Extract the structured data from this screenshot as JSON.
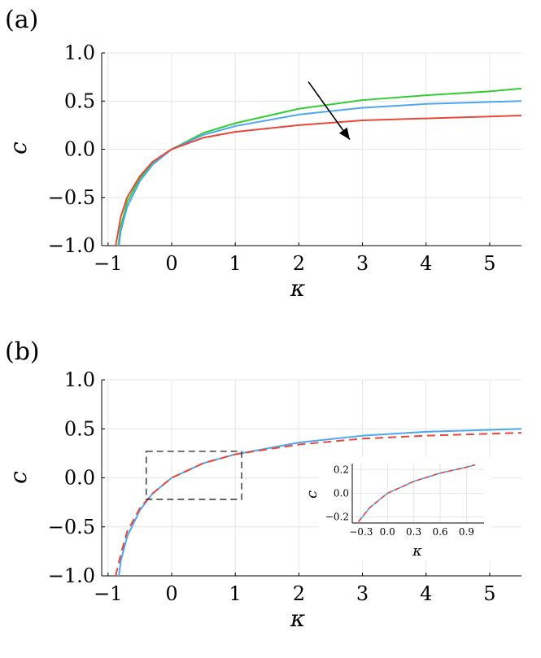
{
  "chart_data": [
    {
      "panel_label": "(a)",
      "type": "line",
      "xlabel": "κ",
      "ylabel": "c",
      "xlim": [
        -1.1,
        5.5
      ],
      "ylim": [
        -1.0,
        1.0
      ],
      "xticks": [
        "−1",
        "0",
        "1",
        "2",
        "3",
        "4",
        "5"
      ],
      "yticks": [
        "−1.0",
        "−0.5",
        "0.0",
        "0.5",
        "1.0"
      ],
      "grid": true,
      "series": [
        {
          "color": "#32CD32",
          "style": "solid",
          "x": [
            -0.84,
            -0.8,
            -0.7,
            -0.5,
            -0.3,
            0,
            0.5,
            1,
            2,
            3,
            4,
            5,
            5.5
          ],
          "y": [
            -1.0,
            -0.8,
            -0.55,
            -0.3,
            -0.15,
            0.0,
            0.17,
            0.27,
            0.42,
            0.51,
            0.56,
            0.6,
            0.63
          ]
        },
        {
          "color": "#4DA6F0",
          "style": "solid",
          "x": [
            -0.83,
            -0.8,
            -0.7,
            -0.5,
            -0.3,
            0,
            0.5,
            1,
            2,
            3,
            4,
            5,
            5.5
          ],
          "y": [
            -1.0,
            -0.85,
            -0.6,
            -0.33,
            -0.16,
            0.0,
            0.15,
            0.24,
            0.36,
            0.43,
            0.47,
            0.49,
            0.5
          ]
        },
        {
          "color": "#E8483A",
          "style": "solid",
          "x": [
            -0.88,
            -0.8,
            -0.7,
            -0.5,
            -0.3,
            0,
            0.5,
            1,
            2,
            3,
            4,
            5,
            5.5
          ],
          "y": [
            -1.0,
            -0.7,
            -0.5,
            -0.28,
            -0.13,
            0.0,
            0.12,
            0.18,
            0.25,
            0.3,
            0.32,
            0.34,
            0.35
          ]
        }
      ],
      "annotations": [
        {
          "type": "arrow",
          "from": [
            2.15,
            0.7
          ],
          "to": [
            2.8,
            0.1
          ]
        }
      ]
    },
    {
      "panel_label": "(b)",
      "type": "line",
      "xlabel": "κ",
      "ylabel": "c",
      "xlim": [
        -1.1,
        5.5
      ],
      "ylim": [
        -1.0,
        1.0
      ],
      "xticks": [
        "−1",
        "0",
        "1",
        "2",
        "3",
        "4",
        "5"
      ],
      "yticks": [
        "−1.0",
        "−0.5",
        "0.0",
        "0.5",
        "1.0"
      ],
      "grid": true,
      "series": [
        {
          "color": "#4DA6F0",
          "style": "solid",
          "x": [
            -0.83,
            -0.8,
            -0.7,
            -0.5,
            -0.3,
            0,
            0.5,
            1,
            2,
            3,
            4,
            5,
            5.5
          ],
          "y": [
            -1.0,
            -0.85,
            -0.6,
            -0.33,
            -0.16,
            0.0,
            0.15,
            0.24,
            0.36,
            0.43,
            0.47,
            0.49,
            0.5
          ]
        },
        {
          "color": "#E8483A",
          "style": "dashed",
          "x": [
            -0.88,
            -0.8,
            -0.7,
            -0.5,
            -0.3,
            0,
            0.5,
            1,
            2,
            3,
            4,
            5,
            5.5
          ],
          "y": [
            -1.0,
            -0.78,
            -0.55,
            -0.31,
            -0.16,
            0.0,
            0.15,
            0.24,
            0.34,
            0.4,
            0.43,
            0.45,
            0.46
          ]
        }
      ],
      "highlight_box": {
        "x": [
          -0.4,
          1.1
        ],
        "y": [
          -0.22,
          0.27
        ]
      },
      "inset": {
        "xlabel": "κ",
        "ylabel": "c",
        "xlim": [
          -0.4,
          1.1
        ],
        "ylim": [
          -0.25,
          0.25
        ],
        "xticks": [
          "−0.3",
          "0.0",
          "0.3",
          "0.6",
          "0.9"
        ],
        "yticks": [
          "−0.2",
          "0.0",
          "0.2"
        ],
        "series": [
          {
            "color": "#4DA6F0",
            "style": "solid",
            "x": [
              -0.33,
              -0.2,
              0,
              0.3,
              0.6,
              0.9,
              1.0
            ],
            "y": [
              -0.24,
              -0.12,
              0.0,
              0.1,
              0.17,
              0.22,
              0.24
            ]
          },
          {
            "color": "#E8483A",
            "style": "dashed",
            "x": [
              -0.33,
              -0.2,
              0,
              0.3,
              0.6,
              0.9,
              1.0
            ],
            "y": [
              -0.24,
              -0.12,
              0.0,
              0.1,
              0.17,
              0.22,
              0.24
            ]
          }
        ]
      }
    }
  ]
}
